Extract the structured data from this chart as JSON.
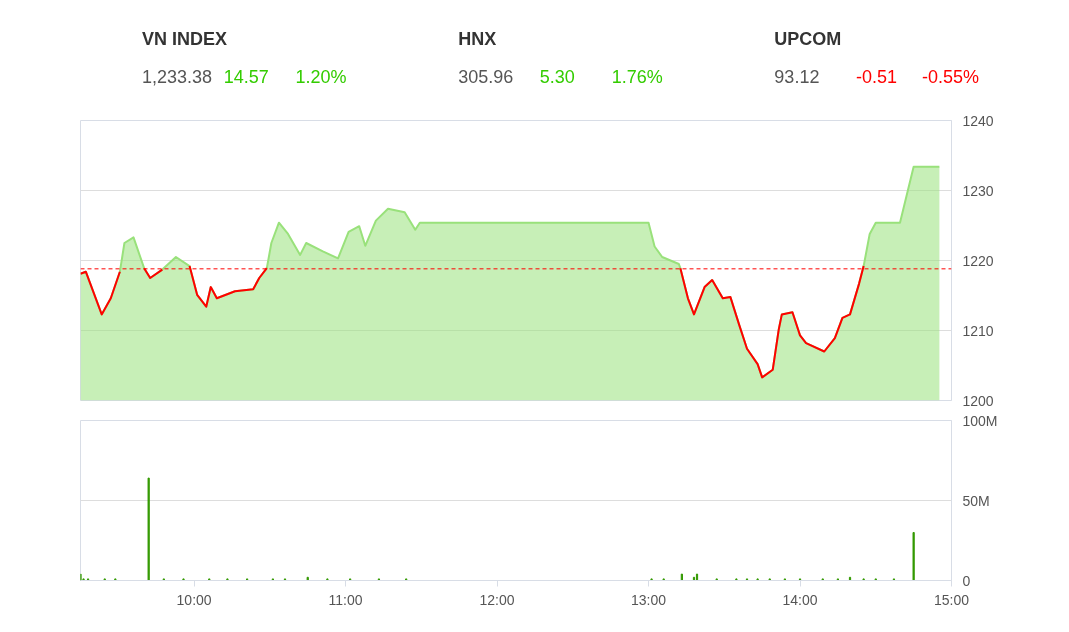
{
  "chart_data": [
    {
      "type": "other",
      "categories": [
        "VN INDEX",
        "HNX",
        "UPCOM"
      ],
      "value_labels": [
        "1,233.38",
        "305.96",
        "93.12"
      ],
      "colors": [
        "#33cc00",
        "#33cc00",
        "#ff0000"
      ],
      "series": [
        {
          "values": [
            14.57,
            5.3,
            -0.51
          ],
          "value_labels": [
            "14.57",
            "5.30",
            "-0.51"
          ]
        },
        {
          "values": [
            1.2,
            1.76,
            -0.55
          ],
          "value_labels": [
            "1.20%",
            "1.76%",
            "-0.55%"
          ]
        }
      ]
    },
    {
      "type": "area",
      "xlim": [
        9.25,
        15
      ],
      "ylim": [
        1200,
        1240
      ],
      "yticks": [
        1200,
        1210,
        1220,
        1230,
        1240
      ],
      "grid": "y",
      "tick_labels": "y",
      "x": [
        9.25,
        9.285,
        9.39,
        9.45,
        9.51,
        9.54,
        9.6,
        9.67,
        9.71,
        9.79,
        9.88,
        9.97,
        10.02,
        10.08,
        10.11,
        10.15,
        10.27,
        10.39,
        10.43,
        10.48,
        10.51,
        10.56,
        10.62,
        10.7,
        10.74,
        10.85,
        10.95,
        11.02,
        11.09,
        11.13,
        11.2,
        11.28,
        11.39,
        11.46,
        11.49,
        13.0,
        13.04,
        13.09,
        13.2,
        13.21,
        13.26,
        13.3,
        13.37,
        13.42,
        13.49,
        13.54,
        13.6,
        13.65,
        13.72,
        13.75,
        13.82,
        13.86,
        13.88,
        13.95,
        14.0,
        14.04,
        14.16,
        14.23,
        14.28,
        14.33,
        14.39,
        14.42,
        14.46,
        14.5,
        14.66,
        14.75,
        14.92
      ],
      "series": [
        {
          "type": "area",
          "color": "#99e17b",
          "values": [
            1218.1,
            1218.4,
            1212.3,
            1214.6,
            1218.4,
            1222.5,
            1223.3,
            1218.9,
            1217.5,
            1218.7,
            1220.5,
            1219.2,
            1215.1,
            1213.4,
            1216.2,
            1214.6,
            1215.6,
            1215.9,
            1217.5,
            1218.9,
            1222.5,
            1225.4,
            1223.8,
            1220.8,
            1222.5,
            1221.3,
            1220.3,
            1224.1,
            1224.9,
            1222.1,
            1225.7,
            1227.4,
            1226.9,
            1224.4,
            1225.4,
            1225.4,
            1222.0,
            1220.5,
            1219.5,
            1218.9,
            1214.6,
            1212.3,
            1216.2,
            1217.2,
            1214.6,
            1214.8,
            1210.7,
            1207.4,
            1205.2,
            1203.3,
            1204.4,
            1210.2,
            1212.3,
            1212.6,
            1209.3,
            1208.2,
            1207.0,
            1208.9,
            1211.8,
            1212.3,
            1216.7,
            1219.2,
            1223.8,
            1225.4,
            1225.4,
            1233.4,
            1233.4
          ]
        },
        {
          "type": "line",
          "color": "#ff0000",
          "values": [
            1218.1,
            1218.4,
            1212.3,
            1214.6,
            1218.4,
            null,
            null,
            1218.9,
            1217.5,
            1218.7,
            null,
            1219.2,
            1215.1,
            1213.4,
            1216.2,
            1214.6,
            1215.6,
            1215.9,
            1217.5,
            1218.9,
            null,
            null,
            null,
            null,
            null,
            null,
            null,
            null,
            null,
            null,
            null,
            null,
            null,
            null,
            null,
            null,
            null,
            null,
            null,
            1218.9,
            1214.6,
            1212.3,
            1216.2,
            1217.2,
            1214.6,
            1214.8,
            1210.7,
            1207.4,
            1205.2,
            1203.3,
            1204.4,
            1210.2,
            1212.3,
            1212.6,
            1209.3,
            1208.2,
            1207.0,
            1208.9,
            1211.8,
            1212.3,
            1216.7,
            1219.2,
            null,
            null,
            null,
            null,
            null
          ]
        }
      ],
      "ref_lines": [
        {
          "axis": "y",
          "value": 1218.81,
          "color": "#ff0000",
          "line_style": "dashed"
        }
      ]
    },
    {
      "type": "bar",
      "xlim": [
        9.25,
        15
      ],
      "ylim": [
        0,
        100
      ],
      "yticks": [
        0,
        {
          "value": 50,
          "label": "50M"
        },
        {
          "value": 100,
          "label": "100M"
        }
      ],
      "xticks": [
        {
          "value": 10,
          "label": "10:00"
        },
        {
          "value": 11,
          "label": "11:00"
        },
        {
          "value": 12,
          "label": "12:00"
        },
        {
          "value": 13,
          "label": "13:00"
        },
        {
          "value": 14,
          "label": "14:00"
        },
        {
          "value": 15,
          "label": "15:00"
        }
      ],
      "grid": "y",
      "x": [
        9.25,
        9.27,
        9.3,
        9.41,
        9.48,
        9.7,
        9.8,
        9.93,
        10.1,
        10.22,
        10.35,
        10.52,
        10.6,
        10.75,
        10.88,
        11.03,
        11.22,
        11.4,
        13.02,
        13.1,
        13.22,
        13.3,
        13.32,
        13.45,
        13.58,
        13.65,
        13.72,
        13.8,
        13.9,
        14.0,
        14.15,
        14.25,
        14.33,
        14.42,
        14.5,
        14.62,
        14.75
      ],
      "color": "#339900",
      "values": [
        4,
        1,
        1,
        1,
        1,
        64,
        1,
        1,
        1,
        1,
        1,
        1,
        1,
        2,
        1,
        1,
        1,
        1,
        1,
        1,
        4,
        2,
        4,
        1,
        1,
        1,
        1,
        1,
        1,
        1,
        1,
        1,
        2,
        1,
        1,
        1,
        30
      ]
    }
  ]
}
